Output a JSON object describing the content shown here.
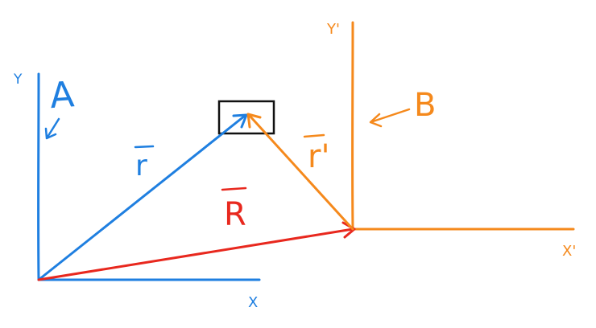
{
  "colors": {
    "frame_a": "#1f7fe0",
    "frame_b": "#f5891c",
    "vector_R": "#e8281e",
    "box": "#111111",
    "background": "#ffffff"
  },
  "frame_a": {
    "name": "A",
    "x_axis_label": "X",
    "y_axis_label": "Y"
  },
  "frame_b": {
    "name": "B",
    "x_axis_label": "X'",
    "y_axis_label": "Y'"
  },
  "vectors": {
    "r": "r",
    "R": "R",
    "r_prime": "r'"
  }
}
